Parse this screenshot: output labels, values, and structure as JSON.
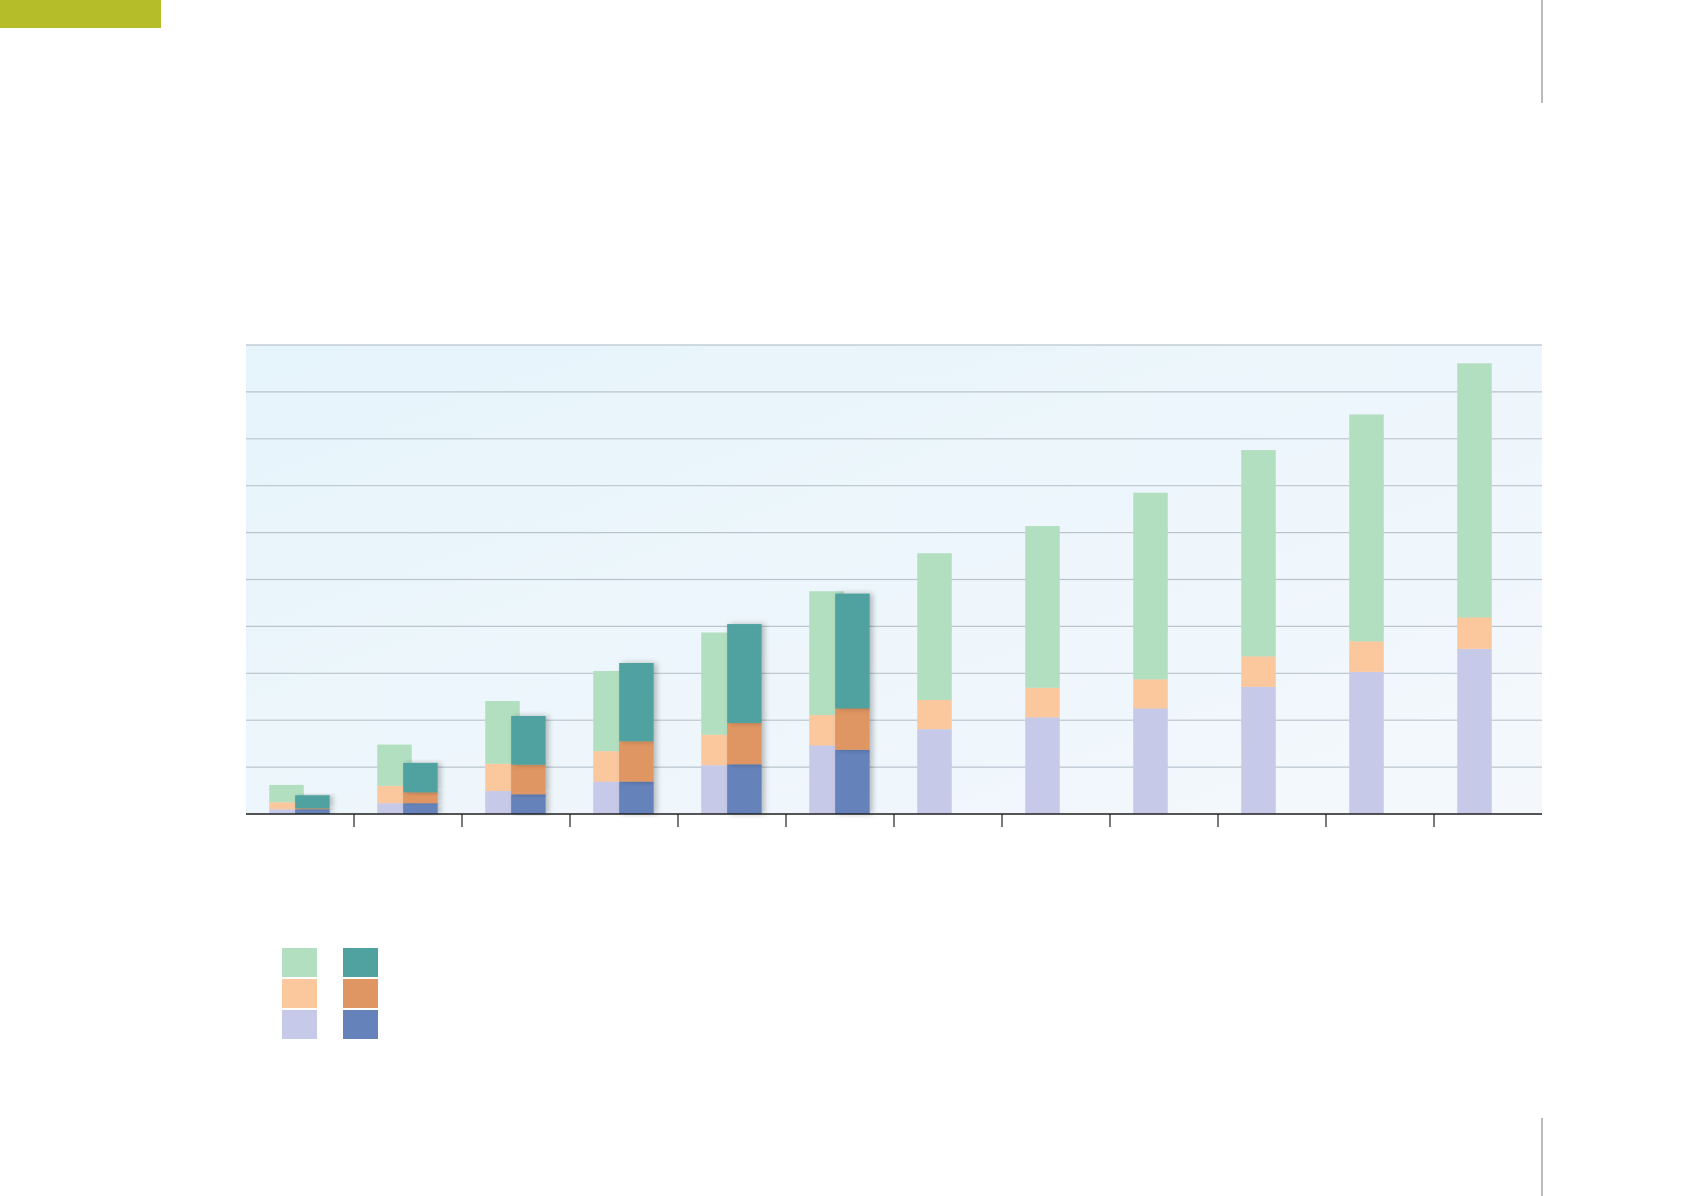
{
  "chart_data": {
    "type": "bar",
    "categories": [
      null,
      null,
      null,
      null,
      null,
      null,
      null,
      null,
      null,
      null,
      null,
      null
    ],
    "series": [
      {
        "stack": 0,
        "color": "#c6cae8",
        "values": [
          0.1,
          0.23,
          0.49,
          0.69,
          1.04,
          1.46,
          1.81,
          2.06,
          2.25,
          2.71,
          3.03,
          3.52
        ]
      },
      {
        "stack": 0,
        "color": "#fbc89e",
        "values": [
          0.15,
          0.37,
          0.58,
          0.65,
          0.65,
          0.65,
          0.62,
          0.63,
          0.62,
          0.65,
          0.65,
          0.67
        ]
      },
      {
        "stack": 0,
        "color": "#b3dfc1",
        "values": [
          0.37,
          0.88,
          1.34,
          1.71,
          2.18,
          2.64,
          3.13,
          3.45,
          3.98,
          4.4,
          4.84,
          5.42
        ]
      },
      {
        "stack": 1,
        "color": "#6582bb",
        "values": [
          0.1,
          0.23,
          0.42,
          0.69,
          1.06,
          1.37,
          null,
          null,
          null,
          null,
          null,
          null
        ]
      },
      {
        "stack": 1,
        "color": "#e09662",
        "values": [
          0.02,
          0.23,
          0.63,
          0.86,
          0.88,
          0.88,
          null,
          null,
          null,
          null,
          null,
          null
        ]
      },
      {
        "stack": 1,
        "color": "#4fa29f",
        "values": [
          0.28,
          0.63,
          1.04,
          1.67,
          2.11,
          2.45,
          null,
          null,
          null,
          null,
          null,
          null
        ]
      }
    ],
    "ylim": [
      0,
      10
    ],
    "yticks": [
      0,
      1,
      2,
      3,
      4,
      5,
      6,
      7,
      8,
      9,
      10
    ],
    "grid": true
  }
}
